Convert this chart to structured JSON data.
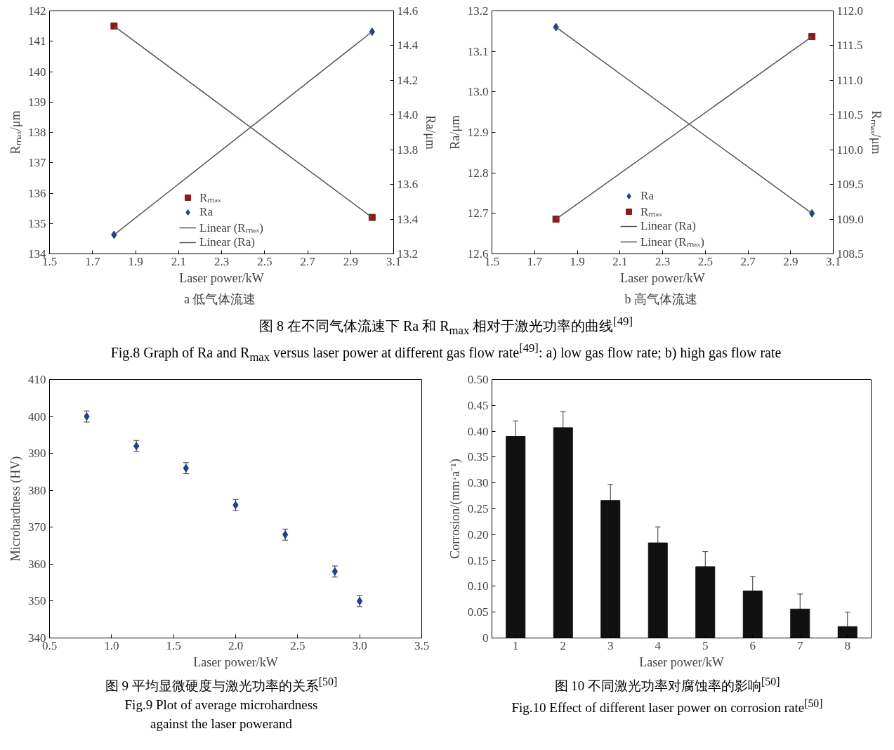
{
  "chart_data": [
    {
      "type": "scatter",
      "x": [
        1.8,
        3.0
      ],
      "xlabel": "Laser power/kW",
      "ylabel": "Rₘₐₓ/μm",
      "y2label": "Ra/μm",
      "series": [
        {
          "name": "Rₘₐₓ",
          "color": "#8b1a1a",
          "marker": "square",
          "values": [
            141.5,
            135.2
          ]
        },
        {
          "name": "Ra",
          "color": "#1f3f8f",
          "marker": "diamond",
          "axis": "y2",
          "values": [
            13.31,
            14.48
          ]
        },
        {
          "name": "Linear (Rₘₐₓ)",
          "type": "line",
          "color": "#555555",
          "values": [
            141.5,
            135.2
          ]
        },
        {
          "name": "Linear (Ra)",
          "type": "line",
          "color": "#555555",
          "axis": "y2",
          "values": [
            13.31,
            14.48
          ]
        }
      ],
      "xlim": [
        1.5,
        3.1
      ],
      "xticks": [
        1.5,
        1.7,
        1.9,
        2.1,
        2.3,
        2.5,
        2.7,
        2.9,
        3.1
      ],
      "ylim": [
        134,
        142
      ],
      "yticks": [
        134,
        135,
        136,
        137,
        138,
        139,
        140,
        141,
        142
      ],
      "y2lim": [
        13.2,
        14.6
      ],
      "y2ticks": [
        13.2,
        13.4,
        13.6,
        13.8,
        {
          "value": 14.0,
          "label": "14.0"
        },
        14.2,
        14.4,
        14.6
      ],
      "grid": false,
      "legend": "bottom center",
      "annotations": [
        "a  低气体流速",
        "图 8    在不同气体流速下 Ra 和 R$_{max}$ 相对于激光功率的曲线$^{[49]}$",
        "Fig.8 Graph of Ra and R$_{max}$ versus laser power at different gas flow rate$^{[49]}$: a) low gas flow rate; b) high gas flow rate"
      ]
    },
    {
      "type": "scatter",
      "x": [
        1.8,
        3.0
      ],
      "xlabel": "Laser power/kW",
      "ylabel": "Ra/μm",
      "y2label": "Rₘₐₓ/μm",
      "series": [
        {
          "name": "Ra",
          "color": "#1f3f8f",
          "marker": "diamond",
          "values": [
            13.16,
            12.7
          ]
        },
        {
          "name": "Rₘₐₓ",
          "color": "#8b1a1a",
          "marker": "square",
          "axis": "y2",
          "values": [
            109.0,
            111.63
          ]
        },
        {
          "name": "Linear (Ra)",
          "type": "line",
          "color": "#555555",
          "values": [
            13.16,
            12.7
          ]
        },
        {
          "name": "Linear (Rₘₐₓ)",
          "type": "line",
          "color": "#555555",
          "axis": "y2",
          "values": [
            109.0,
            111.63
          ]
        }
      ],
      "xlim": [
        1.5,
        3.1
      ],
      "xticks": [
        1.5,
        1.7,
        1.9,
        2.1,
        2.3,
        2.5,
        2.7,
        2.9,
        3.1
      ],
      "ylim": [
        12.6,
        13.2
      ],
      "yticks": [
        12.6,
        12.7,
        12.8,
        12.9,
        {
          "value": 13.0,
          "label": "13.0"
        },
        13.1,
        13.2
      ],
      "y2lim": [
        108.5,
        112.0
      ],
      "y2ticks": [
        108.5,
        {
          "value": 109.0,
          "label": "109.0"
        },
        109.5,
        {
          "value": 110.0,
          "label": "110.0"
        },
        110.5,
        {
          "value": 111.0,
          "label": "111.0"
        },
        111.5,
        {
          "value": 112.0,
          "label": "112.0"
        }
      ],
      "grid": false,
      "legend": "bottom center",
      "annotations": [
        "b  高气体流速"
      ]
    },
    {
      "type": "scatter",
      "x": [
        0.8,
        1.2,
        1.6,
        2.0,
        2.4,
        2.8,
        3.0
      ],
      "values": [
        400,
        392,
        386,
        376,
        368,
        358,
        350
      ],
      "errors": [
        1.5,
        1.5,
        1.5,
        1.5,
        1.5,
        1.5,
        1.5
      ],
      "color": "#1f3f8f",
      "marker": "diamond",
      "xlabel": "Laser power/kW",
      "ylabel": "Microhardness (HV)",
      "xlim": [
        0.5,
        3.5
      ],
      "xticks": [
        0.5,
        {
          "value": 1.0,
          "label": "1.0"
        },
        1.5,
        {
          "value": 2.0,
          "label": "2.0"
        },
        2.5,
        {
          "value": 3.0,
          "label": "3.0"
        },
        3.5
      ],
      "ylim": [
        340,
        410
      ],
      "yticks": [
        340,
        350,
        360,
        370,
        380,
        390,
        400,
        410
      ],
      "grid": false,
      "annotations": [
        "图 9    平均显微硬度与激光功率的关系$^{[50]}$",
        "Fig.9 Plot of average microhardness",
        "against the laser powerand"
      ]
    },
    {
      "type": "bar",
      "categories": [
        "1",
        "2",
        "3",
        "4",
        "5",
        "6",
        "7",
        "8"
      ],
      "values": [
        0.39,
        0.407,
        0.266,
        0.184,
        0.138,
        0.091,
        0.056,
        0.022
      ],
      "errors": [
        0.03,
        0.031,
        0.031,
        0.031,
        0.029,
        0.028,
        0.029,
        0.028
      ],
      "color": "#111111",
      "xlabel": "Laser power/kW",
      "ylabel": "Corrosion/(mm·a⁻¹)",
      "ylim": [
        0,
        0.5
      ],
      "yticks": [
        0,
        0.05,
        {
          "value": 0.1,
          "label": "0.10"
        },
        0.15,
        {
          "value": 0.2,
          "label": "0.20"
        },
        0.25,
        {
          "value": 0.3,
          "label": "0.30"
        },
        0.35,
        {
          "value": 0.4,
          "label": "0.40"
        },
        0.45,
        {
          "value": 0.5,
          "label": "0.50"
        }
      ],
      "grid": false,
      "annotations": [
        "图 10    不同激光功率对腐蚀率的影响$^{[50]}$",
        "Fig.10 Effect of different laser power on corrosion rate$^{[50]}$"
      ]
    }
  ]
}
